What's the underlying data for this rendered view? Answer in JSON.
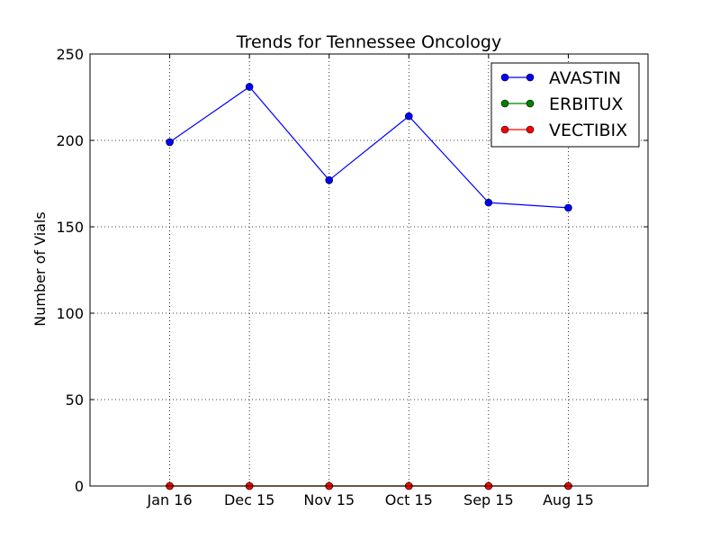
{
  "chart_data": {
    "type": "line",
    "title": "Trends for Tennessee Oncology",
    "xlabel": "",
    "ylabel": "Number of Vials",
    "categories": [
      "Jan 16",
      "Dec 15",
      "Nov 15",
      "Oct 15",
      "Sep 15",
      "Aug 15"
    ],
    "ylim": [
      0,
      250
    ],
    "yticks": [
      0,
      50,
      100,
      150,
      200,
      250
    ],
    "grid": true,
    "legend_position": "top-right",
    "series": [
      {
        "name": "AVASTIN",
        "color": "#0000ff",
        "values": [
          199,
          231,
          177,
          214,
          164,
          161
        ]
      },
      {
        "name": "ERBITUX",
        "color": "#008000",
        "values": [
          0,
          0,
          0,
          0,
          0,
          0
        ]
      },
      {
        "name": "VECTIBIX",
        "color": "#ff0000",
        "values": [
          0,
          0,
          0,
          0,
          0,
          0
        ]
      }
    ]
  }
}
